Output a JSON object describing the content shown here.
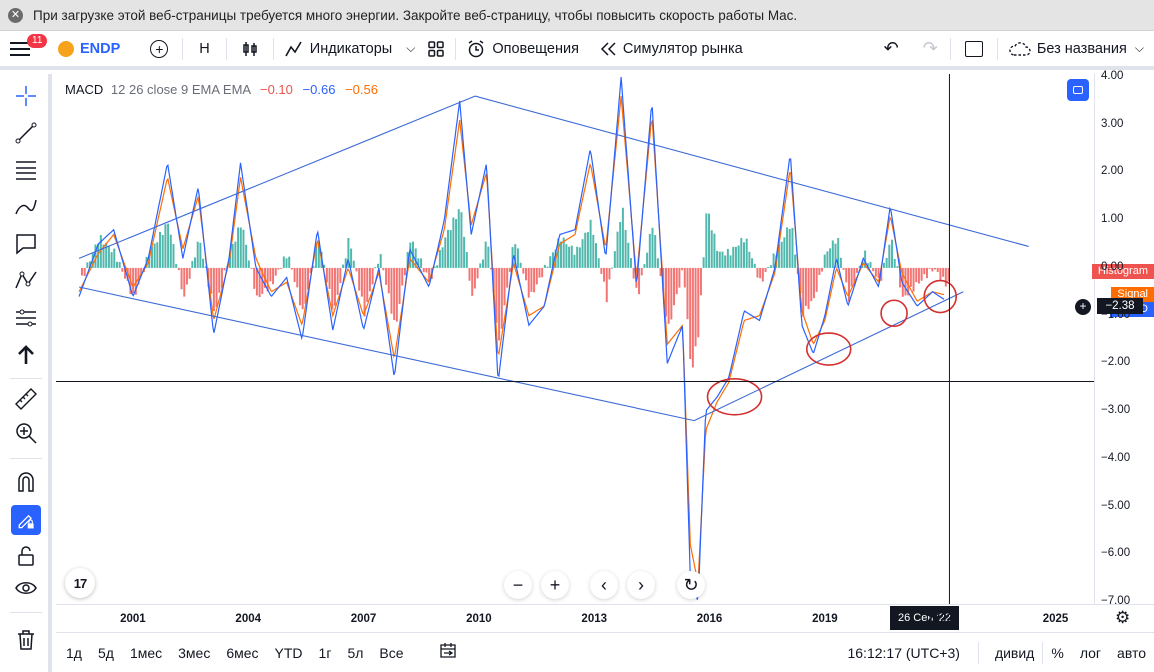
{
  "banner": {
    "close_glyph": "✕",
    "text": "При загрузке этой веб-страницы требуется много энергии. Закройте веб-страницу, чтобы повысить скорость работы Mac."
  },
  "topbar": {
    "menu_badge": "11",
    "symbol": "ENDP",
    "add_glyph": "+",
    "interval": "H",
    "indicators_label": "Индикаторы",
    "alerts_label": "Оповещения",
    "replay_label": "Симулятор рынка",
    "undo_glyph": "↶",
    "redo_glyph": "↷",
    "layout_name": "Без названия"
  },
  "legend": {
    "name": "MACD",
    "params": "12 26 close 9 EMA EMA",
    "histogram": "−0.10",
    "macd": "−0.66",
    "signal": "−0.56"
  },
  "price_axis": {
    "labels": [
      "4.00",
      "3.00",
      "2.00",
      "1.00",
      "0.00",
      "−1.00",
      "−2.00",
      "−3.00",
      "−4.00",
      "−5.00",
      "−6.00",
      "−7.00"
    ],
    "crosshair_value": "−2.38",
    "tags": {
      "histogram": "Histogram",
      "signal": "Signal",
      "macd": "MACD"
    }
  },
  "time_axis": {
    "labels": [
      "2001",
      "2004",
      "2007",
      "2010",
      "2013",
      "2016",
      "2019",
      "2022",
      "2025"
    ],
    "crosshair_time": "26 Сен '22"
  },
  "bottombar": {
    "ranges": [
      "1д",
      "5д",
      "1мес",
      "3мес",
      "6мес",
      "YTD",
      "1г",
      "5л",
      "Все"
    ],
    "clock": "16:12:17 (UTC+3)",
    "dividend": "дивид",
    "percent": "%",
    "log": "лог",
    "auto": "авто"
  },
  "navigation": {
    "zoom_out": "−",
    "zoom_in": "+",
    "scroll_left": "‹",
    "scroll_right": "›",
    "reset": "↻"
  },
  "tv_logo": "17",
  "colors": {
    "macd": "#2962ff",
    "signal": "#ff6d00",
    "hist_pos": "#26a69a",
    "hist_neg": "#ef5350",
    "trendline": "#3d6bd6",
    "annotation": "#d32f2f"
  },
  "chart_data": {
    "type": "line",
    "title": "MACD 12 26 close 9 EMA EMA",
    "ylim": [
      -7,
      4
    ],
    "x_range": [
      1999.5,
      2026.5
    ],
    "series": [
      {
        "name": "MACD",
        "x": [
          2000.1,
          2000.6,
          2001.0,
          2001.5,
          2001.9,
          2002.4,
          2002.8,
          2003.2,
          2003.6,
          2004.0,
          2004.3,
          2004.7,
          2005.1,
          2005.5,
          2005.9,
          2006.3,
          2006.7,
          2007.1,
          2007.5,
          2007.9,
          2008.3,
          2008.7,
          2009.2,
          2009.6,
          2010.0,
          2010.3,
          2010.7,
          2011.0,
          2011.4,
          2011.8,
          2012.2,
          2012.6,
          2013.0,
          2013.4,
          2013.8,
          2014.2,
          2014.6,
          2015.0,
          2015.4,
          2015.8,
          2016.0,
          2016.2,
          2016.4,
          2016.7,
          2017.0,
          2017.4,
          2017.8,
          2018.2,
          2018.6,
          2018.9,
          2019.2,
          2019.5,
          2019.8,
          2020.1,
          2020.5,
          2020.9,
          2021.2,
          2021.5,
          2021.9,
          2022.3,
          2022.6
        ],
        "values": [
          -0.6,
          0.5,
          0.8,
          -0.6,
          0.2,
          2.2,
          0.2,
          1.7,
          -1.4,
          0.2,
          2.2,
          0.0,
          -0.6,
          -0.2,
          -1.5,
          0.8,
          -1.3,
          0.2,
          -1.3,
          0.0,
          -2.3,
          0.4,
          -0.4,
          1.0,
          3.5,
          0.7,
          2.2,
          -2.4,
          0.3,
          -1.2,
          -0.8,
          0.7,
          0.8,
          2.5,
          0.2,
          4.0,
          -0.4,
          3.5,
          -2.0,
          -1.2,
          -6.5,
          -7.0,
          -3.0,
          -2.7,
          -2.3,
          -0.9,
          -1.1,
          0.0,
          2.4,
          -1.2,
          -1.8,
          -1.0,
          0.2,
          -0.8,
          0.2,
          -0.4,
          1.3,
          -0.3,
          -0.8,
          -0.5,
          -0.66
        ]
      },
      {
        "name": "Signal",
        "x": [
          2000.1,
          2000.6,
          2001.0,
          2001.5,
          2001.9,
          2002.4,
          2002.8,
          2003.2,
          2003.6,
          2004.0,
          2004.3,
          2004.7,
          2005.1,
          2005.5,
          2005.9,
          2006.3,
          2006.7,
          2007.1,
          2007.5,
          2007.9,
          2008.3,
          2008.7,
          2009.2,
          2009.6,
          2010.0,
          2010.3,
          2010.7,
          2011.0,
          2011.4,
          2011.8,
          2012.2,
          2012.6,
          2013.0,
          2013.4,
          2013.8,
          2014.2,
          2014.6,
          2015.0,
          2015.4,
          2015.8,
          2016.0,
          2016.2,
          2016.4,
          2016.7,
          2017.0,
          2017.4,
          2017.8,
          2018.2,
          2018.6,
          2018.9,
          2019.2,
          2019.5,
          2019.8,
          2020.1,
          2020.5,
          2020.9,
          2021.2,
          2021.5,
          2021.9,
          2022.3,
          2022.6
        ],
        "values": [
          -0.5,
          0.3,
          0.7,
          -0.4,
          0.1,
          1.9,
          0.4,
          1.5,
          -1.1,
          0.1,
          1.9,
          0.2,
          -0.5,
          -0.3,
          -1.2,
          0.6,
          -1.0,
          0.0,
          -1.0,
          -0.1,
          -1.9,
          0.2,
          -0.3,
          0.8,
          3.1,
          0.9,
          2.0,
          -1.9,
          0.1,
          -1.0,
          -0.8,
          0.5,
          0.7,
          2.2,
          0.4,
          3.6,
          -0.2,
          3.2,
          -1.6,
          -1.2,
          -5.8,
          -6.6,
          -3.4,
          -2.8,
          -2.4,
          -1.1,
          -1.0,
          -0.1,
          2.1,
          -0.9,
          -1.6,
          -1.1,
          0.0,
          -0.6,
          0.1,
          -0.3,
          1.1,
          -0.1,
          -0.7,
          -0.5,
          -0.56
        ]
      }
    ],
    "histogram": {
      "name": "Histogram",
      "last_value": -0.1,
      "range": [
        -2.6,
        2.3
      ]
    },
    "legend": [
      "Histogram",
      "Signal",
      "MACD"
    ],
    "crosshair": {
      "price": -2.38,
      "time": "26 Сен '22"
    }
  }
}
